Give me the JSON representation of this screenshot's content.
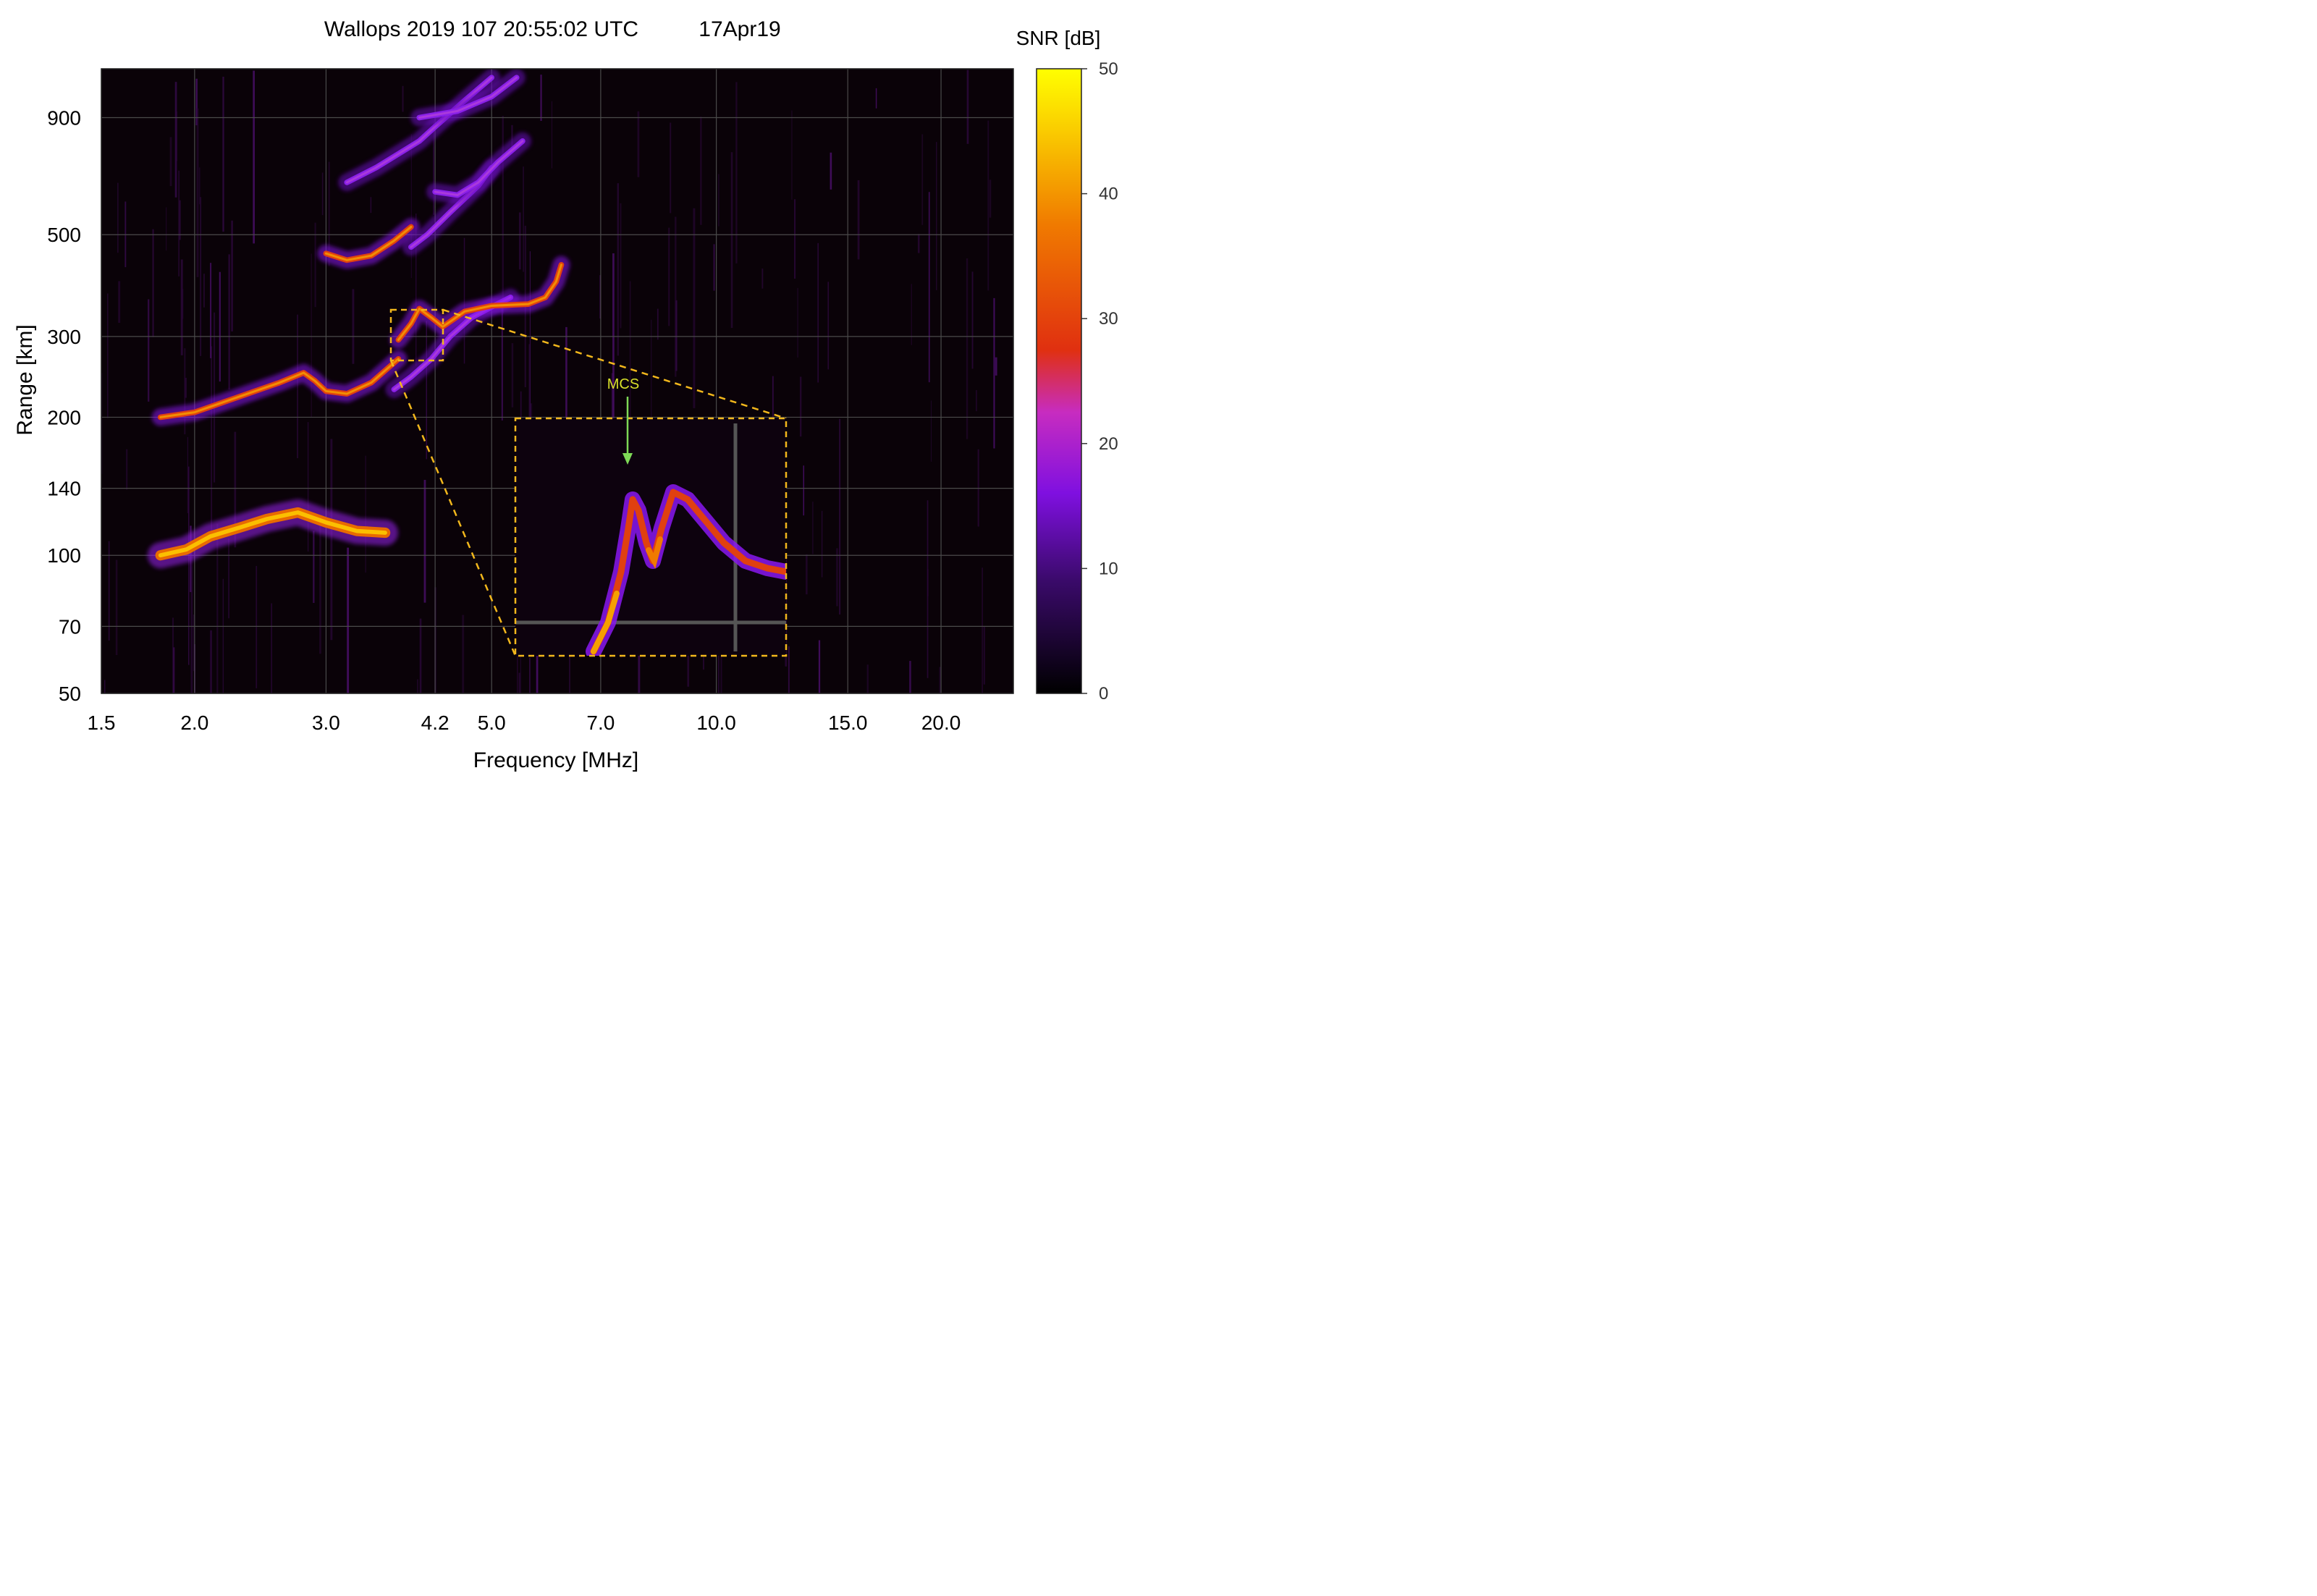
{
  "chart_data": {
    "type": "heatmap",
    "title": "Wallops 2019 107 20:55:02 UTC",
    "date": "17Apr19",
    "xlabel": "Frequency [MHz]",
    "ylabel": "Range [km]",
    "x_ticks": [
      "1.5",
      "2.0",
      "3.0",
      "4.2",
      "5.0",
      "7.0",
      "10.0",
      "15.0",
      "20.0"
    ],
    "y_ticks": [
      "50",
      "70",
      "100",
      "140",
      "200",
      "300",
      "500",
      "900"
    ],
    "x_scale": "log",
    "xlim": [
      1.5,
      25.0
    ],
    "ylim": [
      50,
      1150
    ],
    "grid": true,
    "colorbar": {
      "label": "SNR [dB]",
      "ticks": [
        "0",
        "10",
        "20",
        "30",
        "40",
        "50"
      ],
      "range": [
        0,
        50
      ],
      "colors": [
        "#000000",
        "#3a0a6a",
        "#7f10e0",
        "#c72cc0",
        "#e03010",
        "#f07a00",
        "#fbd600",
        "#ffff00"
      ]
    },
    "traces": [
      {
        "points": [
          [
            1.8,
            100
          ],
          [
            1.95,
            103
          ],
          [
            2.1,
            110
          ],
          [
            2.3,
            115
          ],
          [
            2.5,
            120
          ],
          [
            2.75,
            124
          ],
          [
            3.0,
            118
          ],
          [
            3.3,
            113
          ],
          [
            3.6,
            112
          ]
        ],
        "snr": 42
      },
      {
        "points": [
          [
            1.8,
            200
          ],
          [
            2.0,
            205
          ],
          [
            2.3,
            222
          ],
          [
            2.6,
            238
          ],
          [
            2.8,
            250
          ],
          [
            2.9,
            240
          ],
          [
            3.0,
            228
          ],
          [
            3.2,
            225
          ],
          [
            3.45,
            238
          ],
          [
            3.75,
            268
          ]
        ],
        "snr": 35
      },
      {
        "points": [
          [
            3.7,
            230
          ],
          [
            3.9,
            245
          ],
          [
            4.15,
            268
          ],
          [
            4.4,
            300
          ],
          [
            4.7,
            330
          ],
          [
            5.0,
            348
          ],
          [
            5.3,
            365
          ]
        ],
        "snr": 18
      },
      {
        "points": [
          [
            3.75,
            295
          ],
          [
            3.9,
            320
          ],
          [
            4.0,
            345
          ],
          [
            4.15,
            330
          ],
          [
            4.3,
            315
          ],
          [
            4.6,
            340
          ],
          [
            5.0,
            350
          ],
          [
            5.6,
            353
          ],
          [
            5.9,
            365
          ],
          [
            6.1,
            395
          ],
          [
            6.2,
            430
          ]
        ],
        "snr": 28
      },
      {
        "points": [
          [
            3.0,
            455
          ],
          [
            3.2,
            440
          ],
          [
            3.45,
            450
          ],
          [
            3.7,
            485
          ],
          [
            3.9,
            520
          ]
        ],
        "snr": 30
      },
      {
        "points": [
          [
            3.9,
            470
          ],
          [
            4.1,
            500
          ],
          [
            4.4,
            560
          ],
          [
            4.8,
            640
          ],
          [
            5.0,
            700
          ]
        ],
        "snr": 15
      },
      {
        "points": [
          [
            4.2,
            620
          ],
          [
            4.5,
            610
          ],
          [
            4.8,
            650
          ],
          [
            5.1,
            720
          ],
          [
            5.5,
            800
          ]
        ],
        "snr": 14
      },
      {
        "points": [
          [
            3.2,
            650
          ],
          [
            3.5,
            700
          ],
          [
            3.8,
            760
          ],
          [
            4.0,
            800
          ],
          [
            4.2,
            860
          ],
          [
            4.6,
            980
          ],
          [
            5.0,
            1100
          ]
        ],
        "snr": 16
      },
      {
        "points": [
          [
            4.0,
            900
          ],
          [
            4.5,
            930
          ],
          [
            5.0,
            1000
          ],
          [
            5.4,
            1100
          ]
        ],
        "snr": 18
      }
    ],
    "annotation": "MCS"
  }
}
